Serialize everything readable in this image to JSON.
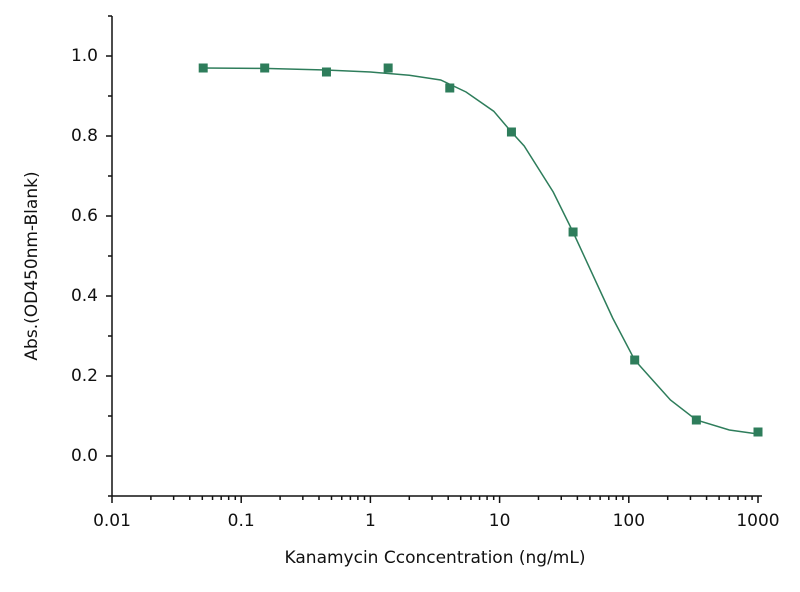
{
  "chart_data": {
    "type": "scatter",
    "x_label": "Kanamycin Cconcentration (ng/mL)",
    "y_label": "Abs.(OD450nm-Blank)",
    "xscale": "log",
    "xlim": [
      0.01,
      1000
    ],
    "ylim": [
      -0.1,
      1.1
    ],
    "xticks": [
      0.01,
      0.1,
      1,
      10,
      100,
      1000
    ],
    "xminorticks": [
      0.02,
      0.03,
      0.04,
      0.05,
      0.06,
      0.07,
      0.08,
      0.09,
      0.2,
      0.3,
      0.4,
      0.5,
      0.6,
      0.7,
      0.8,
      0.9,
      2,
      3,
      4,
      5,
      6,
      7,
      8,
      9,
      20,
      30,
      40,
      50,
      60,
      70,
      80,
      90,
      200,
      300,
      400,
      500,
      600,
      700,
      800,
      900
    ],
    "yticks": [
      {
        "value": 0,
        "label": "0.0"
      },
      0.2,
      0.4,
      0.6,
      0.8,
      {
        "value": 1,
        "label": "1.0"
      }
    ],
    "yminorticks": [
      -0.1,
      0.1,
      0.3,
      0.5,
      0.7,
      0.9,
      1.1
    ],
    "series": [
      {
        "type": "scatter",
        "marker": "square",
        "color": "#2e7d5b",
        "x": [
          0.0508,
          0.152,
          0.457,
          1.372,
          4.115,
          12.35,
          37.04,
          111.1,
          333.3,
          1000
        ],
        "values": [
          0.97,
          0.97,
          0.96,
          0.97,
          0.92,
          0.81,
          0.56,
          0.24,
          0.09,
          0.06
        ]
      },
      {
        "type": "line",
        "color": "#2e7d5b",
        "x": [
          0.05,
          0.15,
          0.45,
          1,
          2,
          3.5,
          5.5,
          9,
          12.35,
          15.5,
          26,
          37,
          75,
          111,
          210,
          333,
          600,
          1000
        ],
        "values": [
          0.97,
          0.969,
          0.965,
          0.96,
          0.952,
          0.94,
          0.91,
          0.862,
          0.81,
          0.775,
          0.66,
          0.56,
          0.345,
          0.24,
          0.14,
          0.09,
          0.065,
          0.055
        ]
      }
    ]
  }
}
